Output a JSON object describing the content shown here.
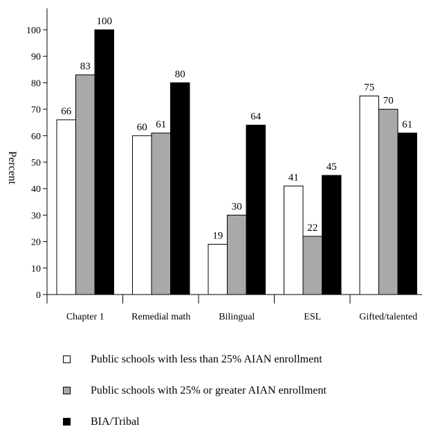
{
  "chart_data": {
    "type": "bar",
    "ylabel": "Percent",
    "xlabel": "",
    "ylim": [
      0,
      110
    ],
    "yticks": [
      0,
      10,
      20,
      30,
      40,
      50,
      60,
      70,
      80,
      90,
      100
    ],
    "categories": [
      "Chapter 1",
      "Remedial math",
      "Bilingual",
      "ESL",
      "Gifted/talented"
    ],
    "series": [
      {
        "name": "Public schools with less than 25% AIAN enrollment",
        "color": "#ffffff",
        "values": [
          66,
          60,
          19,
          41,
          75
        ]
      },
      {
        "name": "Public schools with 25% or greater AIAN enrollment",
        "color": "#a9a9a9",
        "values": [
          83,
          61,
          30,
          22,
          70
        ]
      },
      {
        "name": "BIA/Tribal",
        "color": "#000000",
        "values": [
          100,
          80,
          64,
          45,
          61
        ]
      }
    ],
    "grid": false,
    "legend_placement": "bottom"
  }
}
